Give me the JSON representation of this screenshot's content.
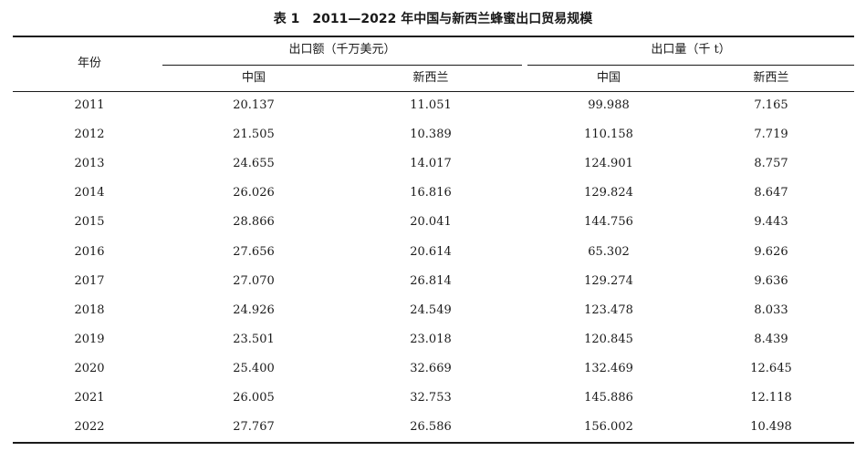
{
  "table": {
    "caption_number": "表 1",
    "caption_title": "2011—2022 年中国与新西兰蜂蜜出口贸易规模",
    "headers": {
      "year": "年份",
      "export_value": "出口额（千万美元）",
      "export_volume": "出口量（千 t）",
      "china": "中国",
      "new_zealand": "新西兰"
    },
    "rows": [
      [
        "2011",
        "20.137",
        "11.051",
        "99.988",
        "7.165"
      ],
      [
        "2012",
        "21.505",
        "10.389",
        "110.158",
        "7.719"
      ],
      [
        "2013",
        "24.655",
        "14.017",
        "124.901",
        "8.757"
      ],
      [
        "2014",
        "26.026",
        "16.816",
        "129.824",
        "8.647"
      ],
      [
        "2015",
        "28.866",
        "20.041",
        "144.756",
        "9.443"
      ],
      [
        "2016",
        "27.656",
        "20.614",
        "65.302",
        "9.626"
      ],
      [
        "2017",
        "27.070",
        "26.814",
        "129.274",
        "9.636"
      ],
      [
        "2018",
        "24.926",
        "24.549",
        "123.478",
        "8.033"
      ],
      [
        "2019",
        "23.501",
        "23.018",
        "120.845",
        "8.439"
      ],
      [
        "2020",
        "25.400",
        "32.669",
        "132.469",
        "12.645"
      ],
      [
        "2021",
        "26.005",
        "32.753",
        "145.886",
        "12.118"
      ],
      [
        "2022",
        "27.767",
        "26.586",
        "156.002",
        "10.498"
      ]
    ]
  }
}
